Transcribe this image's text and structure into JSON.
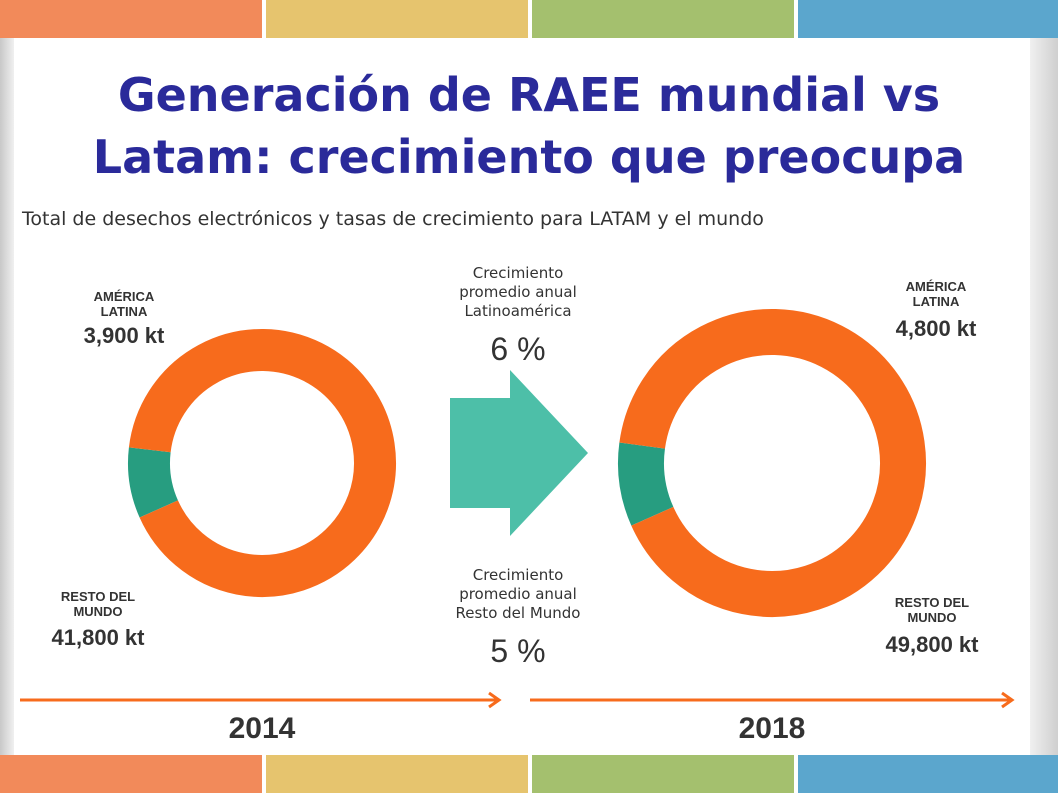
{
  "title_lines": [
    "Generación de RAEE mundial vs",
    "Latam: crecimiento que preocupa"
  ],
  "subtitle": "Total de desechos electrónicos y tasas de crecimiento para LATAM y el mundo",
  "colors": {
    "title": "#2a2a9a",
    "latam_slice": "#279d80",
    "rest_slice": "#f76b1c",
    "arrow": "#4dbfa8",
    "timeline": "#f76b1c",
    "bands": [
      "#f28a5a",
      "#e6c46e",
      "#a4c06e",
      "#5ba6cd"
    ]
  },
  "middle": {
    "latam_growth_label": [
      "Crecimiento",
      "promedio anual",
      "Latinoamérica"
    ],
    "latam_growth_value": "6 %",
    "rest_growth_label": [
      "Crecimiento",
      "promedio anual",
      "Resto del Mundo"
    ],
    "rest_growth_value": "5 %"
  },
  "chart_data": [
    {
      "type": "pie",
      "donut": true,
      "year": "2014",
      "slices": [
        {
          "label_lines": [
            "AMÉRICA",
            "LATINA"
          ],
          "value_label": "3,900 kt",
          "value": 3900
        },
        {
          "label_lines": [
            "RESTO DEL",
            "MUNDO"
          ],
          "value_label": "41,800 kt",
          "value": 41800
        }
      ]
    },
    {
      "type": "pie",
      "donut": true,
      "year": "2018",
      "slices": [
        {
          "label_lines": [
            "AMÉRICA",
            "LATINA"
          ],
          "value_label": "4,800 kt",
          "value": 4800
        },
        {
          "label_lines": [
            "RESTO DEL",
            "MUNDO"
          ],
          "value_label": "49,800 kt",
          "value": 49800
        }
      ]
    }
  ]
}
